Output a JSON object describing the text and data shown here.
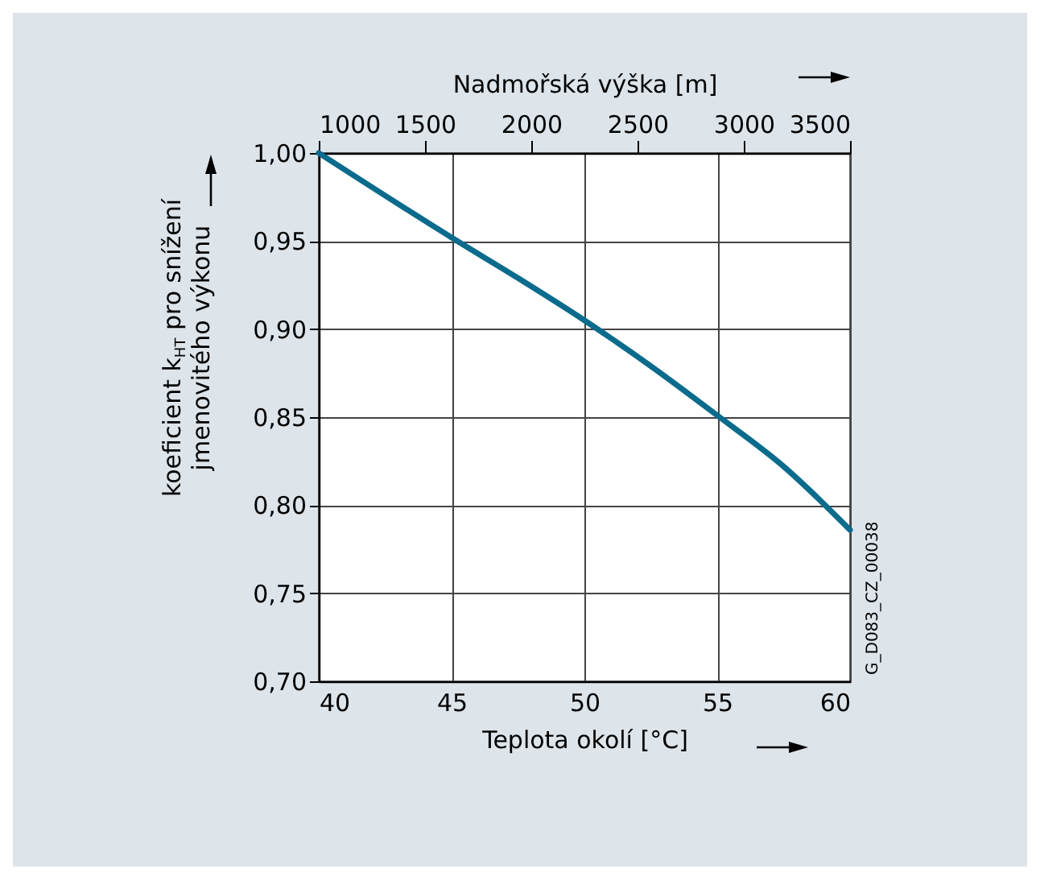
{
  "chart_data": {
    "type": "line",
    "x": [
      40,
      45,
      47.5,
      50,
      52.5,
      55,
      57.5,
      60
    ],
    "series": [
      {
        "color": "#0b6b8c",
        "values": [
          1.0,
          0.952,
          0.929,
          0.905,
          0.879,
          0.851,
          0.822,
          0.786
        ]
      }
    ],
    "xlim": [
      40,
      60
    ],
    "xticks": [
      40,
      45,
      50,
      55,
      60
    ],
    "ylim": [
      0.7,
      1.0
    ],
    "yticks": [
      {
        "value": 0.7,
        "label": "0,70"
      },
      {
        "value": 0.75,
        "label": "0,75"
      },
      {
        "value": 0.8,
        "label": "0,80"
      },
      {
        "value": 0.85,
        "label": "0,85"
      },
      {
        "value": 0.9,
        "label": "0,90"
      },
      {
        "value": 0.95,
        "label": "0,95"
      },
      {
        "value": 1.0,
        "label": "1,00"
      }
    ],
    "x2lim": [
      1000,
      3500
    ],
    "x2ticks": [
      1000,
      1500,
      2000,
      2500,
      3000,
      3500
    ],
    "xlabel": "Teplota okolí [°C]",
    "x2label": "Nadmořská výška [m]",
    "ylabel": "koeficient k$_{HT}$ pro snížení\njmenovitého výkonu",
    "grid": true,
    "annotations": [
      "G_D083_CZ_00038"
    ]
  }
}
